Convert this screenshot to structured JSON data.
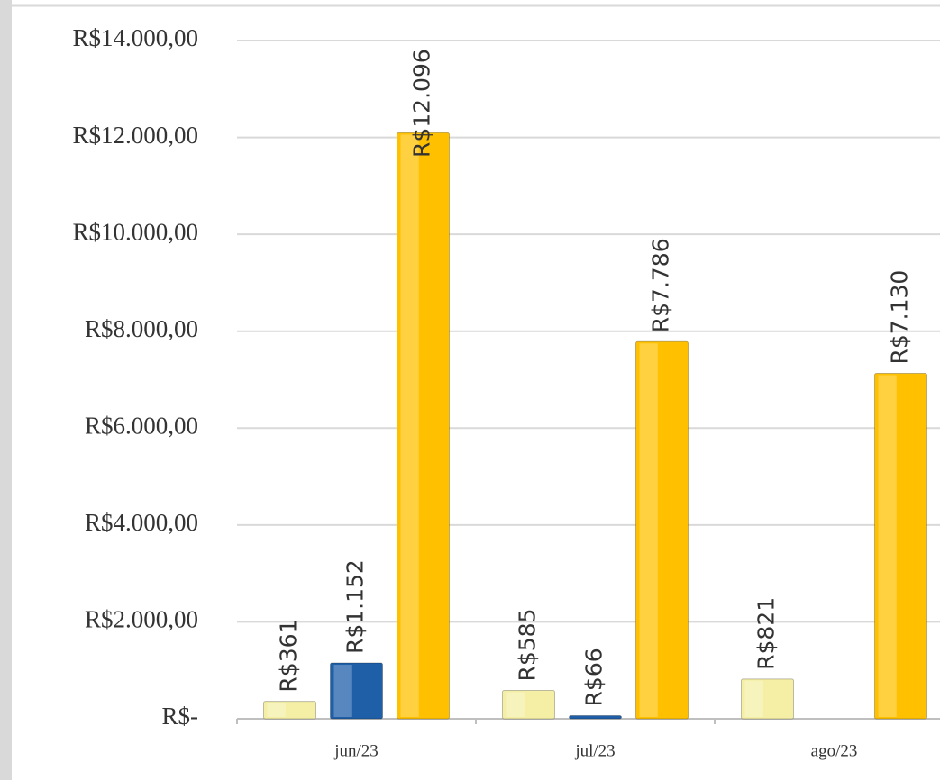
{
  "chart_data": {
    "type": "bar",
    "categories": [
      "jun/23",
      "jul/23",
      "ago/23"
    ],
    "series": [
      {
        "color": "#f5efa6",
        "values": [
          361,
          585,
          821
        ],
        "value_labels": [
          "R$361",
          "R$585",
          "R$821"
        ]
      },
      {
        "color": "#1f5fa8",
        "values": [
          1152,
          66,
          null
        ],
        "value_labels": [
          "R$1.152",
          "R$66",
          null
        ]
      },
      {
        "color": "#ffc000",
        "values": [
          12096,
          7786,
          7130
        ],
        "value_labels": [
          "R$12.096",
          "R$7.786",
          "R$7.130"
        ]
      }
    ],
    "ylim": [
      0,
      14000
    ],
    "yticks": [
      {
        "value": 0,
        "label": "R$-"
      },
      {
        "value": 2000,
        "label": "R$2.000,00"
      },
      {
        "value": 4000,
        "label": "R$4.000,00"
      },
      {
        "value": 6000,
        "label": "R$6.000,00"
      },
      {
        "value": 8000,
        "label": "R$8.000,00"
      },
      {
        "value": 10000,
        "label": "R$10.000,00"
      },
      {
        "value": 12000,
        "label": "R$12.000,00"
      },
      {
        "value": 14000,
        "label": "R$14.000,00"
      }
    ],
    "grid": true
  }
}
